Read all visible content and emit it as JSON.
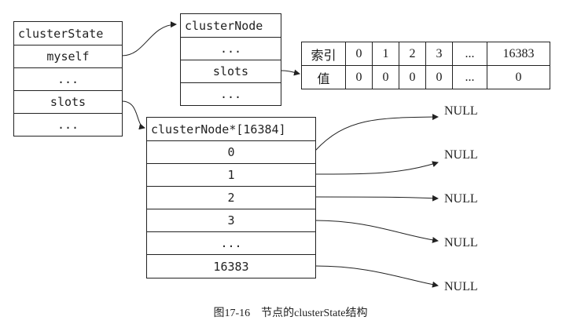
{
  "cluster_state": {
    "title": "clusterState",
    "rows": [
      "myself",
      "...",
      "slots",
      "..."
    ]
  },
  "cluster_node": {
    "title": "clusterNode",
    "rows": [
      "...",
      "slots",
      "..."
    ]
  },
  "slots_table": {
    "index_label": "索引",
    "value_label": "值",
    "indices": [
      "0",
      "1",
      "2",
      "3",
      "...",
      "16383"
    ],
    "values": [
      "0",
      "0",
      "0",
      "0",
      "...",
      "0"
    ]
  },
  "node_array": {
    "title": "clusterNode*[16384]",
    "rows": [
      "0",
      "1",
      "2",
      "3",
      "...",
      "16383"
    ]
  },
  "null_labels": [
    "NULL",
    "NULL",
    "NULL",
    "NULL",
    "NULL"
  ],
  "caption": "图17-16　节点的clusterState结构"
}
